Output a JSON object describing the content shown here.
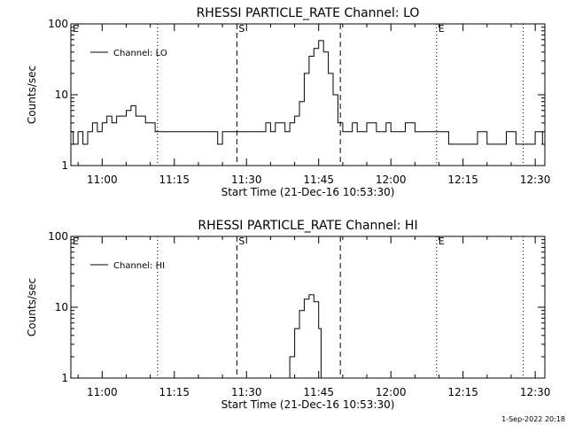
{
  "footer": {
    "timestamp": "1-Sep-2022 20:18"
  },
  "chart_data": [
    {
      "type": "line",
      "title": "RHESSI PARTICLE_RATE Channel: LO",
      "xlabel": "Start Time (21-Dec-16 10:53:30)",
      "ylabel": "Counts/sec",
      "yscale": "log",
      "ylim": [
        1,
        100
      ],
      "xlim": [
        "10:53:30",
        "12:32:00"
      ],
      "x_ticks": [
        "11:00",
        "11:15",
        "11:30",
        "11:45",
        "12:00",
        "12:15",
        "12:30"
      ],
      "y_ticks": [
        "1",
        "10",
        "100"
      ],
      "grid": false,
      "legend": {
        "position": "top-left",
        "entries": [
          "Channel: LO"
        ]
      },
      "markers": [
        {
          "label": "E",
          "time": "10:53:30",
          "style": "dotted"
        },
        {
          "label": "",
          "time": "11:11:30",
          "style": "dotted"
        },
        {
          "label": "S",
          "time": "11:28:00",
          "style": "dashed"
        },
        {
          "label": "",
          "time": "11:49:30",
          "style": "dashed"
        },
        {
          "label": "E",
          "time": "12:09:30",
          "style": "dotted"
        },
        {
          "label": "",
          "time": "12:27:30",
          "style": "dotted"
        }
      ],
      "series": [
        {
          "name": "Channel: LO",
          "x": [
            "10:53:30",
            "10:54:00",
            "10:55:00",
            "10:56:00",
            "10:57:00",
            "10:58:00",
            "10:59:00",
            "11:00:00",
            "11:01:00",
            "11:02:00",
            "11:03:00",
            "11:04:00",
            "11:05:00",
            "11:06:00",
            "11:07:00",
            "11:08:00",
            "11:09:00",
            "11:10:00",
            "11:11:00",
            "11:11:30",
            "11:13:00",
            "11:15:00",
            "11:17:00",
            "11:19:00",
            "11:20:00",
            "11:21:00",
            "11:22:00",
            "11:23:00",
            "11:24:00",
            "11:25:00",
            "11:27:00",
            "11:29:00",
            "11:31:00",
            "11:32:00",
            "11:33:00",
            "11:34:00",
            "11:35:00",
            "11:36:00",
            "11:37:00",
            "11:38:00",
            "11:39:00",
            "11:40:00",
            "11:41:00",
            "11:42:00",
            "11:43:00",
            "11:44:00",
            "11:45:00",
            "11:46:00",
            "11:47:00",
            "11:48:00",
            "11:49:00",
            "11:50:00",
            "11:51:00",
            "11:52:00",
            "11:53:00",
            "11:55:00",
            "11:57:00",
            "11:59:00",
            "12:00:00",
            "12:01:00",
            "12:03:00",
            "12:05:00",
            "12:07:00",
            "12:09:00",
            "12:10:00",
            "12:12:00",
            "12:14:00",
            "12:16:00",
            "12:18:00",
            "12:20:00",
            "12:22:00",
            "12:24:00",
            "12:26:00",
            "12:28:00",
            "12:30:00",
            "12:31:30"
          ],
          "values": [
            3,
            2,
            3,
            2,
            3,
            4,
            3,
            4,
            5,
            4,
            5,
            5,
            6,
            7,
            5,
            5,
            4,
            4,
            3,
            3,
            3,
            3,
            3,
            3,
            3,
            3,
            3,
            3,
            2,
            3,
            3,
            3,
            3,
            3,
            3,
            4,
            3,
            4,
            4,
            3,
            4,
            5,
            8,
            20,
            35,
            45,
            58,
            40,
            20,
            10,
            4,
            3,
            3,
            4,
            3,
            4,
            3,
            4,
            3,
            3,
            4,
            3,
            3,
            3,
            3,
            2,
            2,
            2,
            3,
            2,
            2,
            3,
            2,
            2,
            3,
            2
          ]
        }
      ]
    },
    {
      "type": "line",
      "title": "RHESSI PARTICLE_RATE Channel: HI",
      "xlabel": "Start Time (21-Dec-16 10:53:30)",
      "ylabel": "Counts/sec",
      "yscale": "log",
      "ylim": [
        1,
        100
      ],
      "xlim": [
        "10:53:30",
        "12:32:00"
      ],
      "x_ticks": [
        "11:00",
        "11:15",
        "11:30",
        "11:45",
        "12:00",
        "12:15",
        "12:30"
      ],
      "y_ticks": [
        "1",
        "10",
        "100"
      ],
      "grid": false,
      "legend": {
        "position": "top-left",
        "entries": [
          "Channel: HI"
        ]
      },
      "markers": [
        {
          "label": "E",
          "time": "10:53:30",
          "style": "dotted"
        },
        {
          "label": "",
          "time": "11:11:30",
          "style": "dotted"
        },
        {
          "label": "S",
          "time": "11:28:00",
          "style": "dashed"
        },
        {
          "label": "",
          "time": "11:49:30",
          "style": "dashed"
        },
        {
          "label": "E",
          "time": "12:09:30",
          "style": "dotted"
        },
        {
          "label": "",
          "time": "12:27:30",
          "style": "dotted"
        }
      ],
      "series": [
        {
          "name": "Channel: HI",
          "x": [
            "11:38:00",
            "11:39:00",
            "11:40:00",
            "11:41:00",
            "11:42:00",
            "11:43:00",
            "11:44:00",
            "11:45:00",
            "11:45:30"
          ],
          "values": [
            1,
            2,
            5,
            9,
            13,
            15,
            12,
            5,
            1
          ]
        }
      ]
    }
  ]
}
